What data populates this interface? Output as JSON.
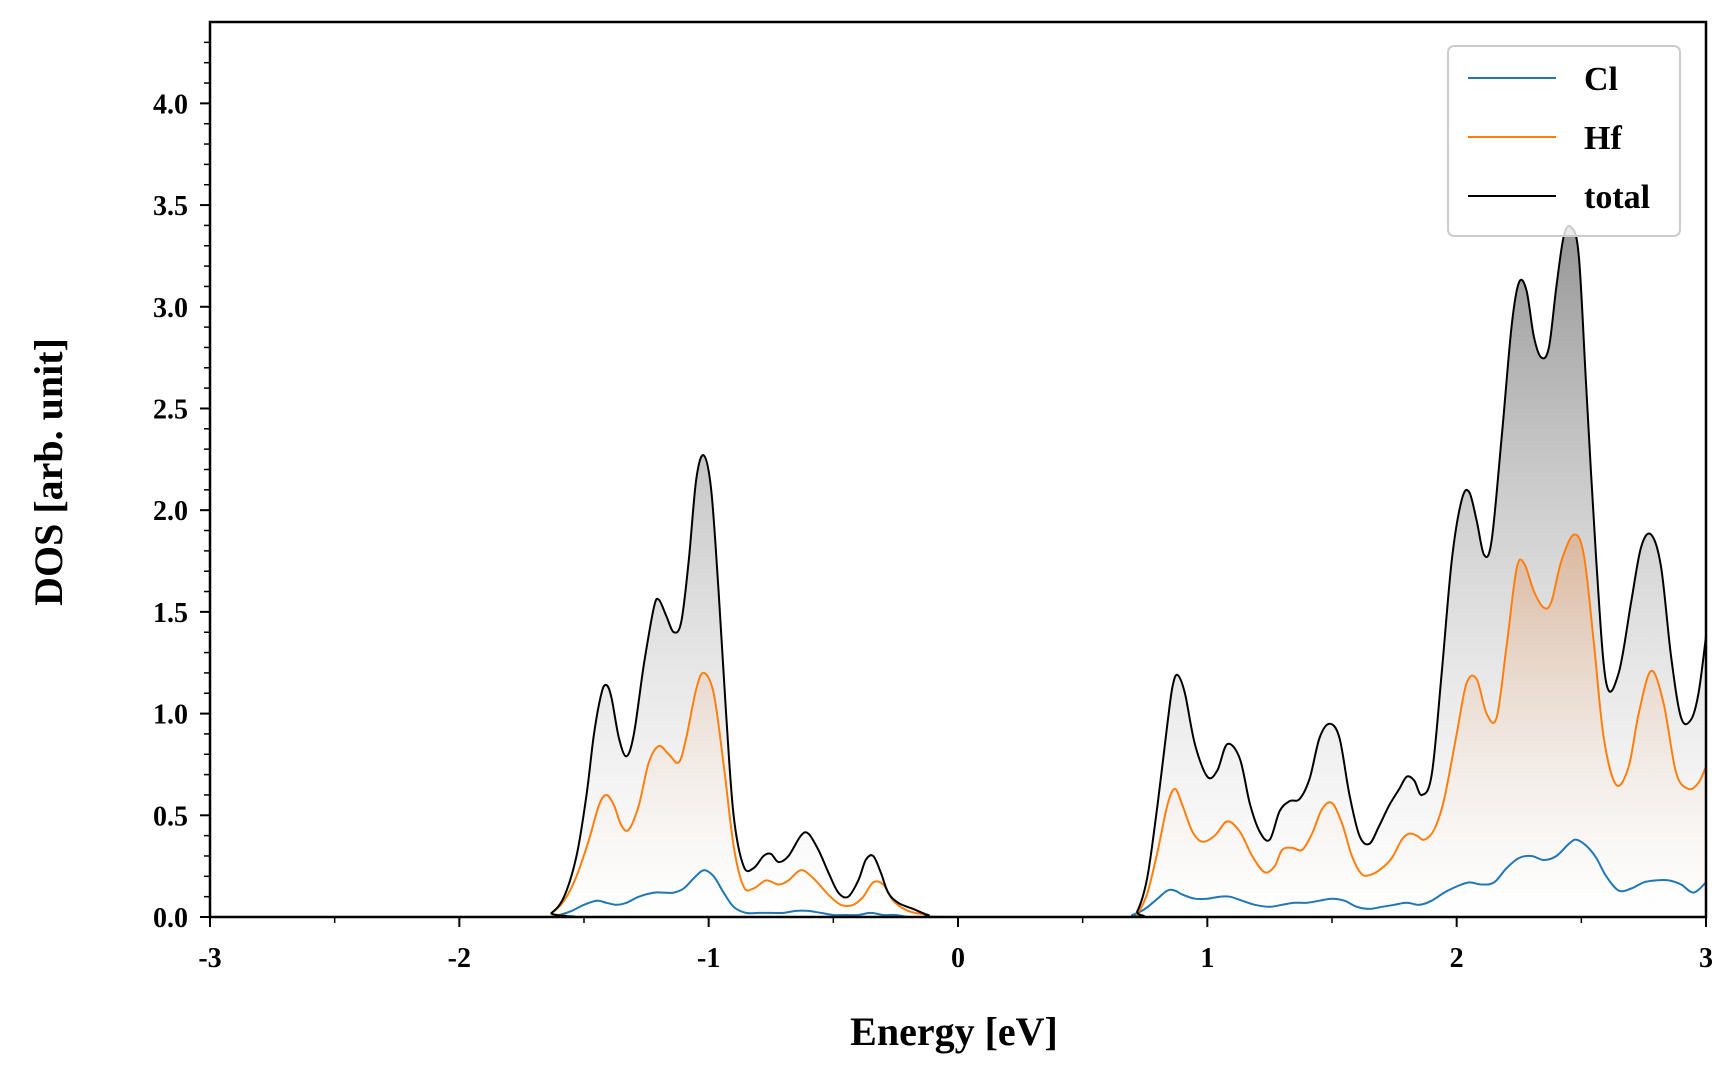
{
  "chart_data": {
    "type": "area",
    "title": "",
    "xlabel": "Energy [eV]",
    "ylabel": "DOS [arb. unit]",
    "xlim": [
      -3,
      3
    ],
    "ylim": [
      0,
      4.4
    ],
    "xticks": [
      -3,
      -2,
      -1,
      0,
      1,
      2,
      3
    ],
    "xtick_labels": [
      "-3",
      "-2",
      "-1",
      "0",
      "1",
      "2",
      "3"
    ],
    "yticks": [
      0,
      0.5,
      1,
      1.5,
      2,
      2.5,
      3,
      3.5,
      4
    ],
    "ytick_labels": [
      "0.0",
      "0.5",
      "1.0",
      "1.5",
      "2.0",
      "2.5",
      "3.0",
      "3.5",
      "4.0"
    ],
    "grid": false,
    "legend_position": "top-right",
    "series": [
      {
        "name": "Cl",
        "color": "#1f77b4",
        "fill": false,
        "x": [
          -3,
          -1.65,
          -1.6,
          -1.55,
          -1.5,
          -1.45,
          -1.41,
          -1.37,
          -1.33,
          -1.28,
          -1.22,
          -1.18,
          -1.14,
          -1.1,
          -1.06,
          -1.02,
          -0.98,
          -0.94,
          -0.9,
          -0.85,
          -0.8,
          -0.75,
          -0.7,
          -0.65,
          -0.6,
          -0.55,
          -0.5,
          -0.45,
          -0.4,
          -0.35,
          -0.3,
          -0.25,
          -0.2,
          -0.15,
          -0.1,
          0.65,
          0.7,
          0.75,
          0.8,
          0.84,
          0.87,
          0.9,
          0.95,
          1.0,
          1.05,
          1.09,
          1.14,
          1.19,
          1.25,
          1.3,
          1.35,
          1.4,
          1.45,
          1.5,
          1.55,
          1.6,
          1.65,
          1.7,
          1.75,
          1.8,
          1.85,
          1.9,
          1.95,
          2.0,
          2.05,
          2.1,
          2.15,
          2.2,
          2.25,
          2.3,
          2.35,
          2.4,
          2.45,
          2.48,
          2.52,
          2.56,
          2.6,
          2.65,
          2.7,
          2.75,
          2.8,
          2.85,
          2.9,
          2.95,
          3.0
        ],
        "y": [
          0,
          0,
          0.01,
          0.03,
          0.06,
          0.08,
          0.07,
          0.06,
          0.07,
          0.1,
          0.12,
          0.12,
          0.12,
          0.14,
          0.19,
          0.23,
          0.2,
          0.12,
          0.05,
          0.02,
          0.02,
          0.02,
          0.02,
          0.03,
          0.03,
          0.02,
          0.01,
          0.01,
          0.01,
          0.02,
          0.01,
          0.01,
          0,
          0,
          0,
          0,
          0.01,
          0.04,
          0.09,
          0.13,
          0.13,
          0.11,
          0.09,
          0.09,
          0.1,
          0.1,
          0.08,
          0.06,
          0.05,
          0.06,
          0.07,
          0.07,
          0.08,
          0.09,
          0.08,
          0.05,
          0.04,
          0.05,
          0.06,
          0.07,
          0.06,
          0.08,
          0.12,
          0.15,
          0.17,
          0.16,
          0.17,
          0.24,
          0.29,
          0.3,
          0.28,
          0.3,
          0.36,
          0.38,
          0.35,
          0.29,
          0.2,
          0.13,
          0.14,
          0.17,
          0.18,
          0.18,
          0.16,
          0.12,
          0.17
        ]
      },
      {
        "name": "Hf",
        "color": "#ff7f0e",
        "fill": true,
        "x": [
          -3,
          -1.68,
          -1.63,
          -1.58,
          -1.53,
          -1.48,
          -1.44,
          -1.41,
          -1.38,
          -1.35,
          -1.32,
          -1.28,
          -1.24,
          -1.2,
          -1.16,
          -1.12,
          -1.09,
          -1.05,
          -1.02,
          -0.98,
          -0.94,
          -0.9,
          -0.86,
          -0.82,
          -0.77,
          -0.72,
          -0.68,
          -0.63,
          -0.58,
          -0.52,
          -0.47,
          -0.42,
          -0.38,
          -0.34,
          -0.3,
          -0.26,
          -0.2,
          -0.12,
          -0.06,
          0.68,
          0.72,
          0.76,
          0.8,
          0.84,
          0.87,
          0.9,
          0.94,
          0.98,
          1.03,
          1.08,
          1.13,
          1.18,
          1.23,
          1.27,
          1.3,
          1.34,
          1.38,
          1.42,
          1.46,
          1.5,
          1.54,
          1.58,
          1.62,
          1.66,
          1.7,
          1.74,
          1.78,
          1.81,
          1.84,
          1.87,
          1.91,
          1.95,
          2.0,
          2.04,
          2.08,
          2.12,
          2.16,
          2.2,
          2.24,
          2.27,
          2.31,
          2.35,
          2.38,
          2.42,
          2.47,
          2.51,
          2.55,
          2.59,
          2.64,
          2.69,
          2.73,
          2.78,
          2.83,
          2.88,
          2.93,
          2.97,
          3.0
        ],
        "y": [
          0,
          0,
          0.02,
          0.08,
          0.2,
          0.38,
          0.55,
          0.6,
          0.55,
          0.45,
          0.43,
          0.55,
          0.76,
          0.84,
          0.8,
          0.76,
          0.88,
          1.12,
          1.2,
          1.1,
          0.75,
          0.35,
          0.15,
          0.14,
          0.18,
          0.16,
          0.18,
          0.23,
          0.19,
          0.11,
          0.06,
          0.06,
          0.1,
          0.17,
          0.16,
          0.08,
          0.03,
          0.01,
          0,
          0,
          0.02,
          0.12,
          0.32,
          0.55,
          0.63,
          0.55,
          0.42,
          0.37,
          0.4,
          0.47,
          0.42,
          0.3,
          0.22,
          0.25,
          0.33,
          0.34,
          0.33,
          0.41,
          0.53,
          0.56,
          0.46,
          0.3,
          0.21,
          0.21,
          0.24,
          0.29,
          0.38,
          0.41,
          0.4,
          0.38,
          0.43,
          0.58,
          0.9,
          1.15,
          1.17,
          1.0,
          0.98,
          1.33,
          1.71,
          1.74,
          1.6,
          1.52,
          1.55,
          1.75,
          1.88,
          1.78,
          1.35,
          0.88,
          0.65,
          0.74,
          1.0,
          1.21,
          1.05,
          0.71,
          0.63,
          0.66,
          0.74
        ]
      },
      {
        "name": "total",
        "color": "#000000",
        "fill": true,
        "x": [
          -3,
          -1.68,
          -1.63,
          -1.58,
          -1.53,
          -1.49,
          -1.46,
          -1.43,
          -1.41,
          -1.39,
          -1.36,
          -1.33,
          -1.3,
          -1.26,
          -1.22,
          -1.2,
          -1.17,
          -1.14,
          -1.11,
          -1.08,
          -1.05,
          -1.02,
          -0.99,
          -0.96,
          -0.93,
          -0.9,
          -0.86,
          -0.82,
          -0.78,
          -0.75,
          -0.72,
          -0.68,
          -0.63,
          -0.6,
          -0.56,
          -0.52,
          -0.48,
          -0.44,
          -0.4,
          -0.37,
          -0.34,
          -0.31,
          -0.28,
          -0.24,
          -0.18,
          -0.12,
          -0.06,
          0.68,
          0.72,
          0.76,
          0.8,
          0.84,
          0.86,
          0.88,
          0.91,
          0.95,
          1.0,
          1.04,
          1.08,
          1.13,
          1.17,
          1.21,
          1.25,
          1.29,
          1.33,
          1.37,
          1.41,
          1.45,
          1.49,
          1.53,
          1.57,
          1.61,
          1.65,
          1.69,
          1.73,
          1.77,
          1.8,
          1.83,
          1.86,
          1.9,
          1.94,
          1.98,
          2.02,
          2.05,
          2.08,
          2.11,
          2.14,
          2.18,
          2.22,
          2.25,
          2.28,
          2.31,
          2.34,
          2.37,
          2.4,
          2.43,
          2.46,
          2.49,
          2.52,
          2.56,
          2.6,
          2.65,
          2.7,
          2.74,
          2.78,
          2.82,
          2.86,
          2.9,
          2.94,
          2.97,
          3.0
        ],
        "y": [
          0,
          0,
          0.02,
          0.1,
          0.3,
          0.6,
          0.9,
          1.1,
          1.14,
          1.08,
          0.88,
          0.79,
          0.9,
          1.24,
          1.52,
          1.56,
          1.48,
          1.4,
          1.45,
          1.75,
          2.15,
          2.27,
          2.1,
          1.6,
          1.0,
          0.5,
          0.25,
          0.24,
          0.3,
          0.31,
          0.27,
          0.3,
          0.4,
          0.41,
          0.33,
          0.22,
          0.12,
          0.1,
          0.18,
          0.28,
          0.3,
          0.22,
          0.12,
          0.07,
          0.04,
          0.01,
          0,
          0,
          0.03,
          0.2,
          0.55,
          0.95,
          1.13,
          1.19,
          1.1,
          0.85,
          0.69,
          0.72,
          0.85,
          0.78,
          0.56,
          0.42,
          0.38,
          0.52,
          0.57,
          0.58,
          0.68,
          0.88,
          0.95,
          0.88,
          0.6,
          0.4,
          0.36,
          0.45,
          0.55,
          0.63,
          0.69,
          0.67,
          0.6,
          0.7,
          1.2,
          1.75,
          2.05,
          2.09,
          1.95,
          1.78,
          1.85,
          2.35,
          2.9,
          3.12,
          3.08,
          2.85,
          2.75,
          2.8,
          3.1,
          3.35,
          3.39,
          3.25,
          2.6,
          1.75,
          1.15,
          1.2,
          1.55,
          1.82,
          1.88,
          1.72,
          1.28,
          0.98,
          0.97,
          1.1,
          1.38
        ]
      }
    ]
  }
}
